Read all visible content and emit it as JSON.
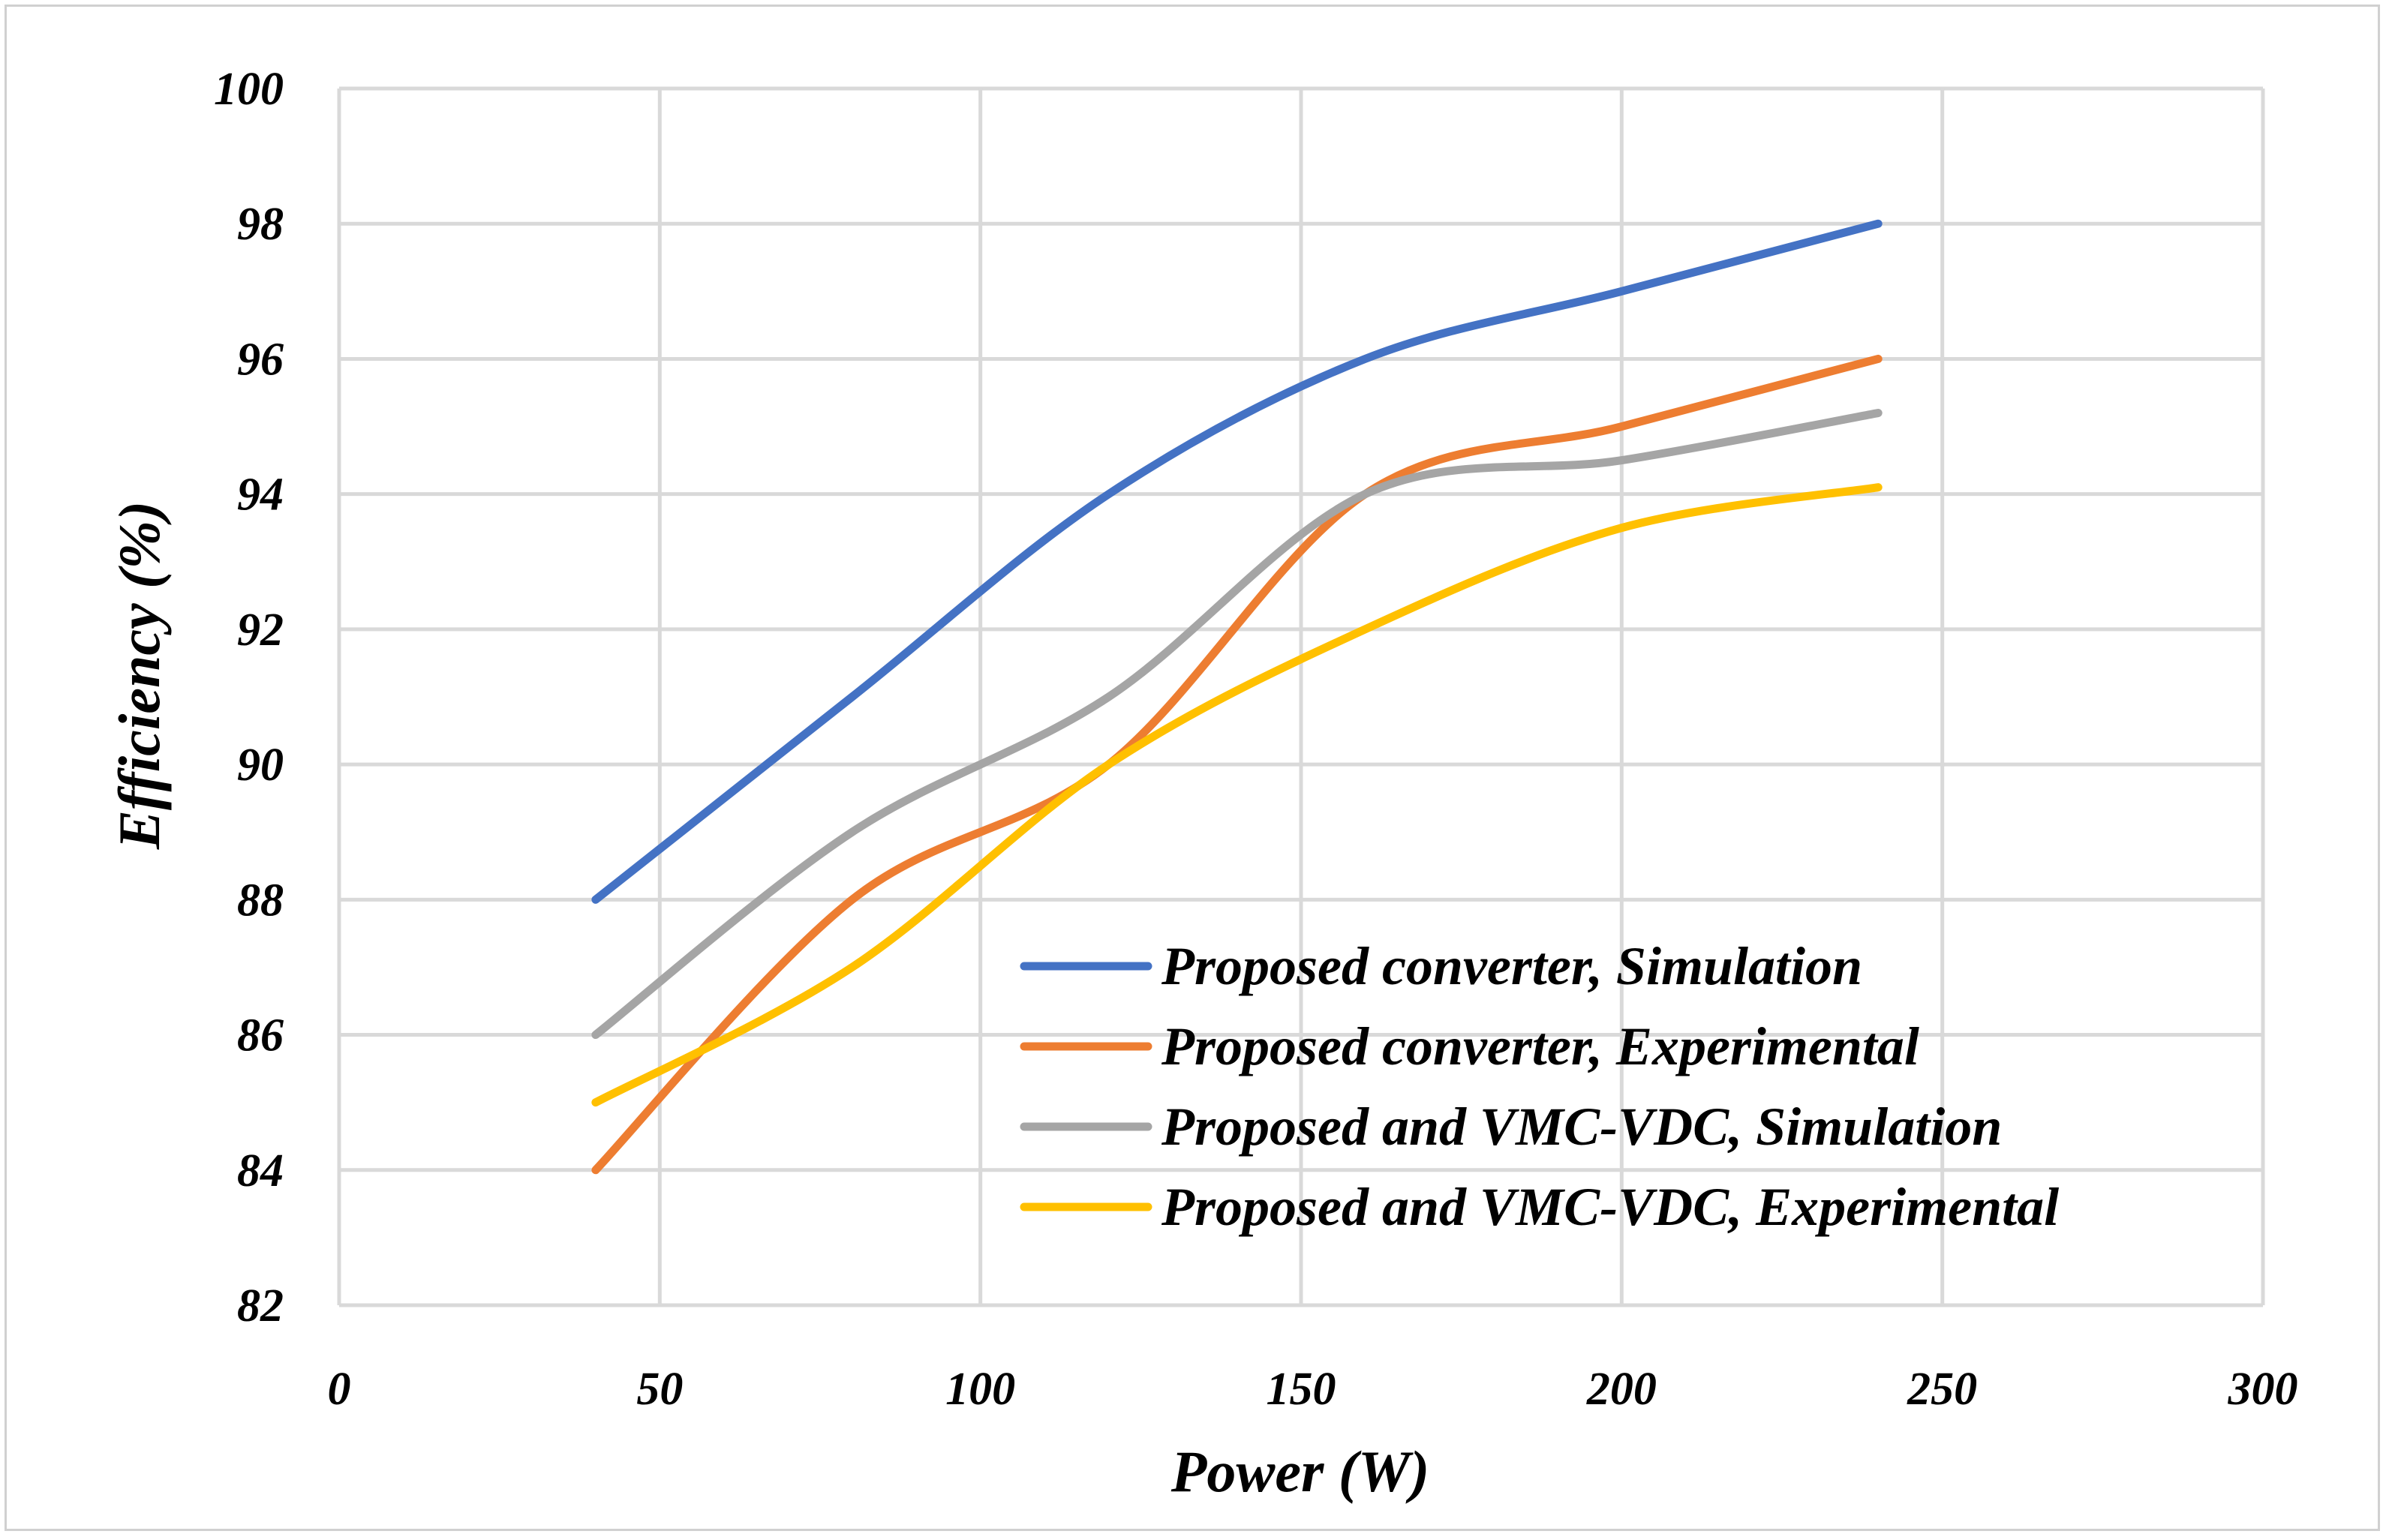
{
  "chart_data": {
    "type": "line",
    "title": "",
    "xlabel": "Power (W)",
    "ylabel": "Efficiency (%)",
    "xlim": [
      0,
      300
    ],
    "ylim": [
      82,
      100
    ],
    "xticks": [
      0,
      50,
      100,
      150,
      200,
      250,
      300
    ],
    "yticks": [
      82,
      84,
      86,
      88,
      90,
      92,
      94,
      96,
      98,
      100
    ],
    "grid": true,
    "legend_position": "bottom-right",
    "x": [
      40,
      80,
      120,
      160,
      200,
      240
    ],
    "series": [
      {
        "name": "Proposed converter, Simulation",
        "color": "#4472C4",
        "values": [
          88,
          91,
          94,
          96,
          97,
          98
        ]
      },
      {
        "name": "Proposed converter, Experimental",
        "color": "#ED7D31",
        "values": [
          84,
          88,
          90,
          94,
          95,
          96
        ]
      },
      {
        "name": "Proposed and VMC-VDC, Simulation",
        "color": "#A5A5A5",
        "values": [
          86,
          89,
          91,
          94,
          94.5,
          95.2
        ]
      },
      {
        "name": "Proposed and VMC-VDC, Experimental",
        "color": "#FFC000",
        "values": [
          85,
          87,
          90,
          92,
          93.5,
          94.1
        ]
      }
    ]
  }
}
